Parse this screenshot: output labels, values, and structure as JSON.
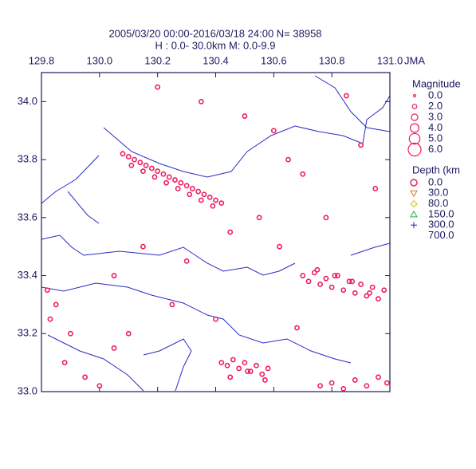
{
  "chart_data": {
    "type": "scatter",
    "title": "2005/03/20 00:00-2016/03/18 24:00   N= 38958",
    "subtitle": "H : 0.0-  30.0km  M: 0.0-9.9",
    "x_note": "JMA",
    "xlim": [
      129.8,
      131.0
    ],
    "ylim": [
      33.0,
      34.1
    ],
    "xticks": [
      129.8,
      {
        "value": 130.0,
        "label": "130.0"
      },
      130.2,
      130.4,
      130.6,
      130.8,
      {
        "value": 131.0,
        "label": "131.0"
      }
    ],
    "yticks": [
      {
        "value": 33.0,
        "label": "33.0"
      },
      33.2,
      33.4,
      33.6,
      33.8,
      {
        "value": 34.0,
        "label": "34.0"
      }
    ],
    "series": [
      {
        "color": "#ee1d5e",
        "x": [
          130.08,
          130.1,
          130.12,
          130.14,
          130.16,
          130.18,
          130.2,
          130.22,
          130.24,
          130.26,
          130.28,
          130.3,
          130.32,
          130.34,
          130.36,
          130.38,
          130.4,
          130.42,
          130.11,
          130.15,
          130.19,
          130.23,
          130.27,
          130.31,
          130.35,
          130.39,
          130.7,
          130.72,
          130.74,
          130.76,
          130.78,
          130.8,
          130.82,
          130.84,
          130.86,
          130.88,
          130.9,
          130.92,
          130.94,
          130.96,
          130.98,
          130.75,
          130.81,
          130.87,
          130.93,
          130.42,
          130.44,
          130.46,
          130.48,
          130.5,
          130.52,
          130.54,
          130.56,
          130.58,
          130.45,
          130.51,
          130.57,
          130.76,
          130.8,
          130.84,
          130.88,
          130.92,
          130.96,
          130.99,
          129.82,
          129.85,
          129.9,
          129.95,
          130.0,
          130.05,
          129.83,
          129.88,
          130.2,
          130.35,
          130.5,
          130.6,
          130.65,
          130.7,
          130.85,
          130.9,
          130.15,
          130.3,
          130.45,
          130.55,
          130.25,
          130.4,
          130.1,
          130.05,
          130.62,
          130.78,
          130.95,
          130.68
        ],
        "y": [
          33.82,
          33.81,
          33.8,
          33.79,
          33.78,
          33.77,
          33.76,
          33.75,
          33.74,
          33.73,
          33.72,
          33.71,
          33.7,
          33.69,
          33.68,
          33.67,
          33.66,
          33.65,
          33.78,
          33.76,
          33.74,
          33.72,
          33.7,
          33.68,
          33.66,
          33.64,
          33.4,
          33.38,
          33.41,
          33.37,
          33.39,
          33.36,
          33.4,
          33.35,
          33.38,
          33.34,
          33.37,
          33.33,
          33.36,
          33.32,
          33.35,
          33.42,
          33.4,
          33.38,
          33.34,
          33.1,
          33.09,
          33.11,
          33.08,
          33.1,
          33.07,
          33.09,
          33.06,
          33.08,
          33.05,
          33.07,
          33.04,
          33.02,
          33.03,
          33.01,
          33.04,
          33.02,
          33.05,
          33.03,
          33.35,
          33.3,
          33.2,
          33.05,
          33.02,
          33.4,
          33.25,
          33.1,
          34.05,
          34.0,
          33.95,
          33.9,
          33.8,
          33.75,
          34.02,
          33.85,
          33.5,
          33.45,
          33.55,
          33.6,
          33.3,
          33.25,
          33.2,
          33.15,
          33.5,
          33.6,
          33.7,
          33.22
        ]
      }
    ],
    "legend": {
      "magnitude_title": "Magnitude",
      "magnitudes": [
        "0.0",
        "2.0",
        "3.0",
        "4.0",
        "5.0",
        "6.0"
      ],
      "depth_title": "Depth (km",
      "depths": [
        "0.0",
        "30.0",
        "80.0",
        "150.0",
        "300.0",
        "700.0"
      ],
      "depth_colors": [
        "#ee1d5e",
        "#e07020",
        "#c8c800",
        "#20b040",
        "#2020c0",
        "#2020c0"
      ]
    }
  }
}
